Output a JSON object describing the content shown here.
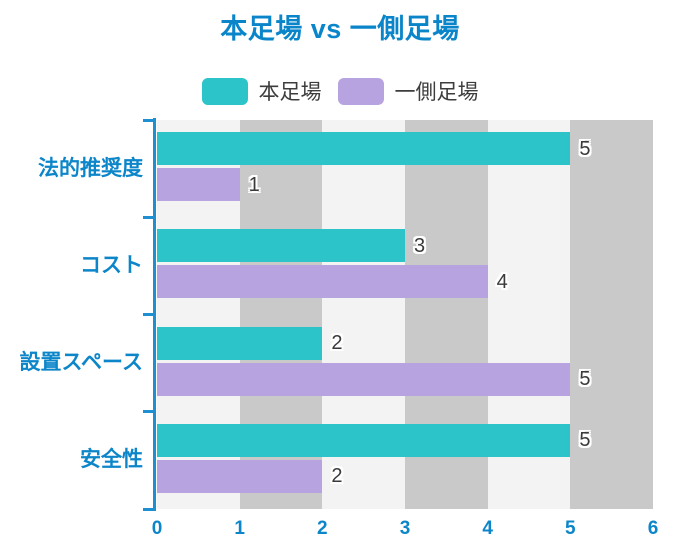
{
  "title": "本足場 vs 一側足場",
  "legend": {
    "items": [
      {
        "label": "本足場",
        "swatch": "teal-rounded-square"
      },
      {
        "label": "一側足場",
        "swatch": "purple-rounded-square"
      }
    ]
  },
  "chart_data": {
    "type": "bar",
    "orientation": "horizontal",
    "title": "本足場 vs 一側足場",
    "categories": [
      "法的推奨度",
      "コスト",
      "設置スペース",
      "安全性"
    ],
    "series": [
      {
        "name": "本足場",
        "color": "#2cc4c9",
        "values": [
          5,
          3,
          2,
          5
        ]
      },
      {
        "name": "一側足場",
        "color": "#b7a3e0",
        "values": [
          1,
          4,
          5,
          2
        ]
      }
    ],
    "xlim": [
      0,
      6
    ],
    "x_ticks": [
      0,
      1,
      2,
      3,
      4,
      5,
      6
    ],
    "xlabel": "",
    "ylabel": "",
    "grid": "off",
    "legend_position": "top-center",
    "background_bands": "alternating vertical stripes per x unit",
    "value_labels": "shown at end of each bar"
  },
  "style": {
    "title_color": "#0a85c9",
    "category_label_color": "#0d86c9",
    "x_tick_label_color": "#0d86c9",
    "axis_line_color": "#1e90d2",
    "legend_text_color": "#3d3d3d",
    "value_label_color": "#3a3a3a",
    "stripe_light": "#f3f3f3",
    "stripe_dark": "#c9c9c9",
    "background": "#ffffff"
  }
}
